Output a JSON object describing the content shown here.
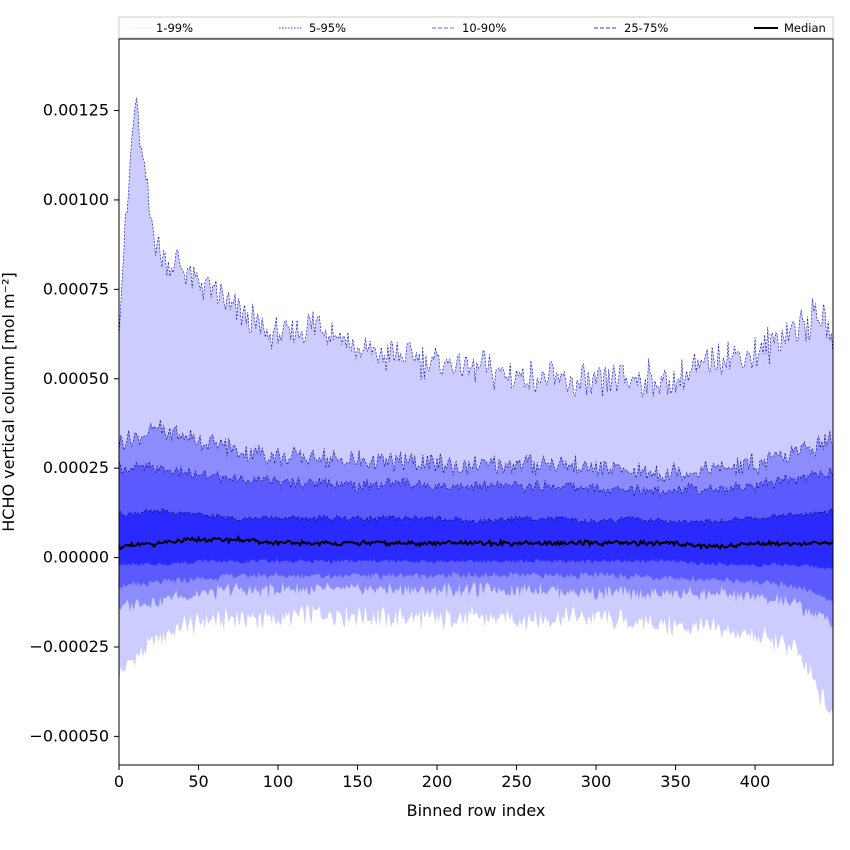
{
  "chart_data": {
    "type": "area",
    "xlabel": "Binned row index",
    "ylabel": "HCHO vertical column [mol m⁻²]",
    "xlim": [
      0,
      449
    ],
    "ylim": [
      -0.00058,
      0.00145
    ],
    "xticks": [
      0,
      50,
      100,
      150,
      200,
      250,
      300,
      350,
      400
    ],
    "yticks": [
      -0.0005,
      -0.00025,
      0.0,
      0.00025,
      0.0005,
      0.00075,
      0.001,
      0.00125
    ],
    "ytick_labels": [
      "−0.00050",
      "−0.00025",
      "0.00000",
      "0.00025",
      "0.00050",
      "0.00075",
      "0.00100",
      "0.00125"
    ],
    "grid": false,
    "legend_position": "top, spanning full width",
    "legend": [
      {
        "label": "1-99%",
        "color": "#ccccff",
        "style": "dotted-thin"
      },
      {
        "label": "5-95%",
        "color": "#0000cc",
        "style": "dotted"
      },
      {
        "label": "10-90%",
        "color": "#6666ff",
        "style": "dashed"
      },
      {
        "label": "25-75%",
        "color": "#3333ff",
        "style": "dashed"
      },
      {
        "label": "Median",
        "color": "#000000",
        "style": "solid"
      }
    ],
    "band_colors": [
      "#ccccff",
      "#8c8cff",
      "#5a5aff",
      "#2a2aff"
    ],
    "series": [
      {
        "name": "Median",
        "x": [
          0,
          25,
          50,
          75,
          100,
          125,
          150,
          175,
          200,
          225,
          250,
          275,
          300,
          325,
          350,
          375,
          400,
          425,
          449
        ],
        "values": [
          3e-05,
          4e-05,
          5e-05,
          5e-05,
          4e-05,
          4e-05,
          4e-05,
          4e-05,
          4e-05,
          4e-05,
          4e-05,
          4e-05,
          4e-05,
          4e-05,
          4e-05,
          3e-05,
          4e-05,
          4e-05,
          4e-05
        ]
      },
      {
        "name": "25-75%",
        "x": [
          0,
          25,
          50,
          75,
          100,
          125,
          150,
          175,
          200,
          225,
          250,
          275,
          300,
          325,
          350,
          375,
          400,
          425,
          449
        ],
        "lower": [
          -2e-05,
          -2e-05,
          -1e-05,
          -1e-05,
          -1e-05,
          -1e-05,
          -1e-05,
          -1e-05,
          -1e-05,
          -1e-05,
          -1e-05,
          -1e-05,
          -1e-05,
          -1e-05,
          -1e-05,
          -2e-05,
          -2e-05,
          -2e-05,
          -3e-05
        ],
        "upper": [
          0.00012,
          0.00013,
          0.00012,
          0.00011,
          0.00011,
          0.00011,
          0.00011,
          0.00011,
          0.00011,
          0.0001,
          0.00011,
          0.00011,
          0.0001,
          0.00011,
          0.0001,
          0.0001,
          0.00011,
          0.00012,
          0.00013
        ]
      },
      {
        "name": "10-90%",
        "x": [
          0,
          25,
          50,
          75,
          100,
          125,
          150,
          175,
          200,
          225,
          250,
          275,
          300,
          325,
          350,
          375,
          400,
          425,
          449
        ],
        "lower": [
          -8e-05,
          -7e-05,
          -6e-05,
          -5e-05,
          -5e-05,
          -5e-05,
          -5e-05,
          -5e-05,
          -5e-05,
          -5e-05,
          -5e-05,
          -5e-05,
          -5e-05,
          -5e-05,
          -6e-05,
          -6e-05,
          -7e-05,
          -8e-05,
          -0.00012
        ],
        "upper": [
          0.00025,
          0.00025,
          0.00023,
          0.00022,
          0.00021,
          0.00021,
          0.0002,
          0.00021,
          0.0002,
          0.0002,
          0.0002,
          0.0002,
          0.00019,
          0.00019,
          0.00019,
          0.00019,
          0.0002,
          0.00022,
          0.00024
        ]
      },
      {
        "name": "5-95%",
        "x": [
          0,
          25,
          50,
          75,
          100,
          125,
          150,
          175,
          200,
          225,
          250,
          275,
          300,
          325,
          350,
          375,
          400,
          425,
          449
        ],
        "lower": [
          -0.00014,
          -0.00012,
          -0.0001,
          -9e-05,
          -9e-05,
          -9e-05,
          -9e-05,
          -9e-05,
          -9e-05,
          -9e-05,
          -9e-05,
          -9e-05,
          -0.0001,
          -0.0001,
          -0.0001,
          -0.0001,
          -0.00011,
          -0.00013,
          -0.00018
        ],
        "upper": [
          0.00032,
          0.00036,
          0.00033,
          0.0003,
          0.00028,
          0.00028,
          0.00027,
          0.00027,
          0.00026,
          0.00026,
          0.00026,
          0.00026,
          0.00025,
          0.00024,
          0.00024,
          0.00025,
          0.00026,
          0.00029,
          0.00033
        ]
      },
      {
        "name": "1-99%",
        "x": [
          0,
          10,
          20,
          25,
          50,
          75,
          100,
          125,
          150,
          175,
          200,
          225,
          250,
          275,
          300,
          325,
          350,
          375,
          400,
          425,
          440,
          449
        ],
        "lower": [
          -0.00033,
          -0.00028,
          -0.00025,
          -0.00022,
          -0.00018,
          -0.00017,
          -0.00017,
          -0.00016,
          -0.00016,
          -0.00017,
          -0.00017,
          -0.00017,
          -0.00017,
          -0.00017,
          -0.00017,
          -0.00018,
          -0.00019,
          -0.0002,
          -0.00022,
          -0.00025,
          -0.00038,
          -0.00044
        ],
        "upper": [
          0.00067,
          0.00128,
          0.00095,
          0.00085,
          0.00078,
          0.00068,
          0.00062,
          0.00066,
          0.00058,
          0.00056,
          0.00055,
          0.00053,
          0.00051,
          0.00049,
          0.00048,
          0.0005,
          0.00049,
          0.00056,
          0.00057,
          0.00064,
          0.00068,
          0.00061
        ]
      }
    ]
  }
}
